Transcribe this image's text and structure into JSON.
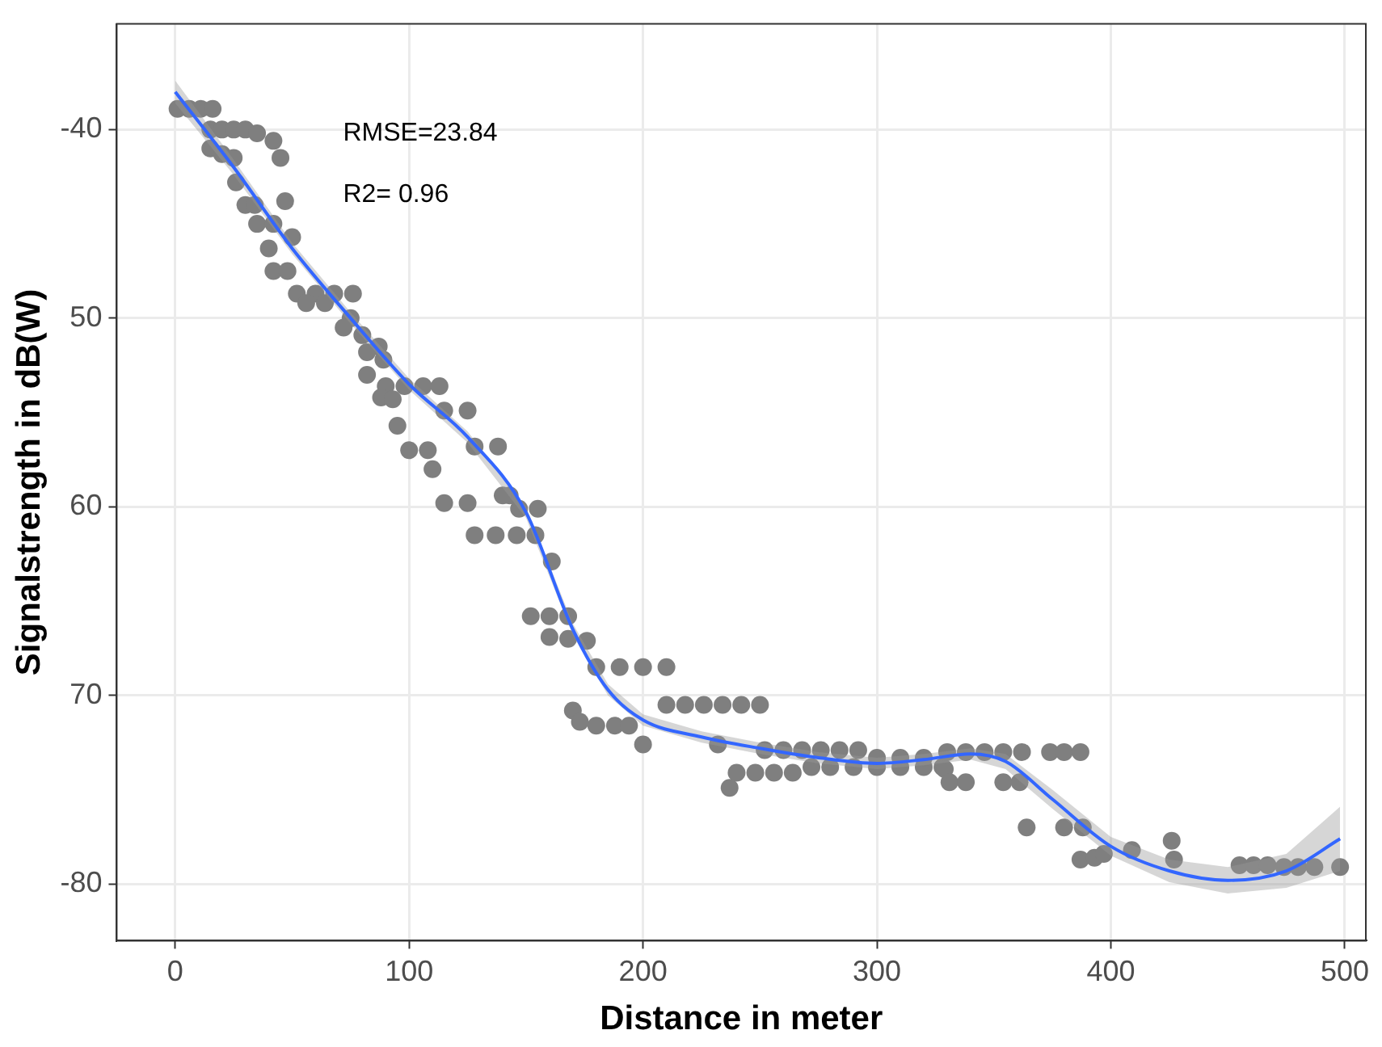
{
  "chart_data": {
    "type": "scatter",
    "xlabel": "Distance in meter",
    "ylabel": "Signalstrength in dB(W)",
    "annotations": [
      "RMSE=23.84",
      "R2= 0.96"
    ],
    "xlim": [
      -25,
      509
    ],
    "ylim": [
      -83,
      -34.4
    ],
    "xticks": [
      0,
      100,
      200,
      300,
      400,
      500
    ],
    "yticks": [
      {
        "value": -80,
        "label": "-80"
      },
      {
        "value": -70,
        "label": "70"
      },
      {
        "value": -60,
        "label": "60"
      },
      {
        "value": -50,
        "label": "50"
      },
      {
        "value": -40,
        "label": "-40"
      }
    ],
    "grid": true,
    "legend": false,
    "series": [
      {
        "color": "#7f7f7f",
        "marker": "circle",
        "x": [
          1,
          6,
          11,
          16,
          15,
          20,
          25,
          30,
          35,
          42,
          15,
          20,
          25,
          45,
          26,
          47,
          30,
          34,
          35,
          42,
          50,
          40,
          42,
          48,
          52,
          60,
          68,
          76,
          56,
          64,
          75,
          72,
          80,
          87,
          82,
          89,
          82,
          90,
          98,
          106,
          113,
          88,
          93,
          115,
          125,
          95,
          100,
          108,
          128,
          138,
          110,
          115,
          125,
          143,
          147,
          155,
          128,
          137,
          146,
          154,
          140,
          161,
          152,
          160,
          168,
          160,
          168,
          176,
          180,
          190,
          200,
          210,
          170,
          173,
          180,
          188,
          194,
          200,
          210,
          218,
          226,
          234,
          242,
          250,
          232,
          240,
          248,
          256,
          264,
          237,
          252,
          260,
          268,
          276,
          284,
          292,
          272,
          280,
          290,
          300,
          310,
          320,
          328,
          300,
          310,
          320,
          330,
          338,
          346,
          354,
          362,
          374,
          380,
          387,
          329,
          331,
          338,
          354,
          361,
          364,
          380,
          388,
          387,
          393,
          397,
          409,
          426,
          427,
          455,
          461,
          467,
          474,
          480,
          487,
          498
        ],
        "values": [
          -38.9,
          -38.9,
          -38.9,
          -38.9,
          -40,
          -40,
          -40,
          -40,
          -40.2,
          -40.6,
          -41,
          -41.3,
          -41.5,
          -41.5,
          -42.8,
          -43.8,
          -44,
          -44,
          -45,
          -45,
          -45.7,
          -46.3,
          -47.5,
          -47.5,
          -48.7,
          -48.7,
          -48.7,
          -48.7,
          -49.2,
          -49.2,
          -50,
          -50.5,
          -50.9,
          -51.5,
          -51.8,
          -52.2,
          -53,
          -53.6,
          -53.6,
          -53.6,
          -53.6,
          -54.2,
          -54.3,
          -54.9,
          -54.9,
          -55.7,
          -57,
          -57,
          -56.8,
          -56.8,
          -58,
          -59.8,
          -59.8,
          -59.4,
          -60.1,
          -60.1,
          -61.5,
          -61.5,
          -61.5,
          -61.5,
          -59.4,
          -62.9,
          -65.8,
          -65.8,
          -65.8,
          -66.9,
          -67,
          -67.1,
          -68.5,
          -68.5,
          -68.5,
          -68.5,
          -70.8,
          -71.4,
          -71.6,
          -71.6,
          -71.6,
          -72.6,
          -70.5,
          -70.5,
          -70.5,
          -70.5,
          -70.5,
          -70.5,
          -72.6,
          -74.1,
          -74.1,
          -74.1,
          -74.1,
          -74.9,
          -72.9,
          -72.9,
          -72.9,
          -72.9,
          -72.9,
          -72.9,
          -73.8,
          -73.8,
          -73.8,
          -73.8,
          -73.8,
          -73.8,
          -73.8,
          -73.3,
          -73.3,
          -73.3,
          -73,
          -73,
          -73,
          -73,
          -73,
          -73,
          -73,
          -73,
          -73.9,
          -74.6,
          -74.6,
          -74.6,
          -74.6,
          -77,
          -77,
          -77,
          -78.7,
          -78.6,
          -78.4,
          -78.2,
          -77.7,
          -78.7,
          -79,
          -79,
          -79,
          -79.1,
          -79.1,
          -79.1,
          -79.1
        ]
      },
      {
        "type": "line",
        "color": "#3366ff",
        "x": [
          0,
          25,
          50,
          75,
          100,
          125,
          150,
          170,
          185,
          200,
          225,
          250,
          275,
          300,
          320,
          340,
          355,
          375,
          400,
          425,
          450,
          475,
          498
        ],
        "values": [
          -38,
          -42,
          -46.3,
          -50,
          -53.5,
          -56.3,
          -60.3,
          -66.5,
          -69.7,
          -71.3,
          -72.2,
          -72.8,
          -73.3,
          -73.6,
          -73.4,
          -73.1,
          -73.5,
          -75.5,
          -78,
          -79.3,
          -79.8,
          -79.3,
          -77.6
        ],
        "lower": [
          -38.6,
          -42.4,
          -46.6,
          -50.3,
          -53.8,
          -56.6,
          -60.6,
          -66.8,
          -70,
          -71.6,
          -72.5,
          -73.1,
          -73.6,
          -73.9,
          -73.7,
          -73.4,
          -73.9,
          -76,
          -78.5,
          -79.9,
          -80.5,
          -80.2,
          -79.3
        ],
        "upper": [
          -37.4,
          -41.6,
          -46,
          -49.7,
          -53.2,
          -56,
          -60,
          -66.2,
          -69.4,
          -71,
          -71.9,
          -72.5,
          -73,
          -73.3,
          -73.1,
          -72.8,
          -73.1,
          -75,
          -77.5,
          -78.7,
          -79.1,
          -78.4,
          -75.9
        ]
      }
    ]
  }
}
